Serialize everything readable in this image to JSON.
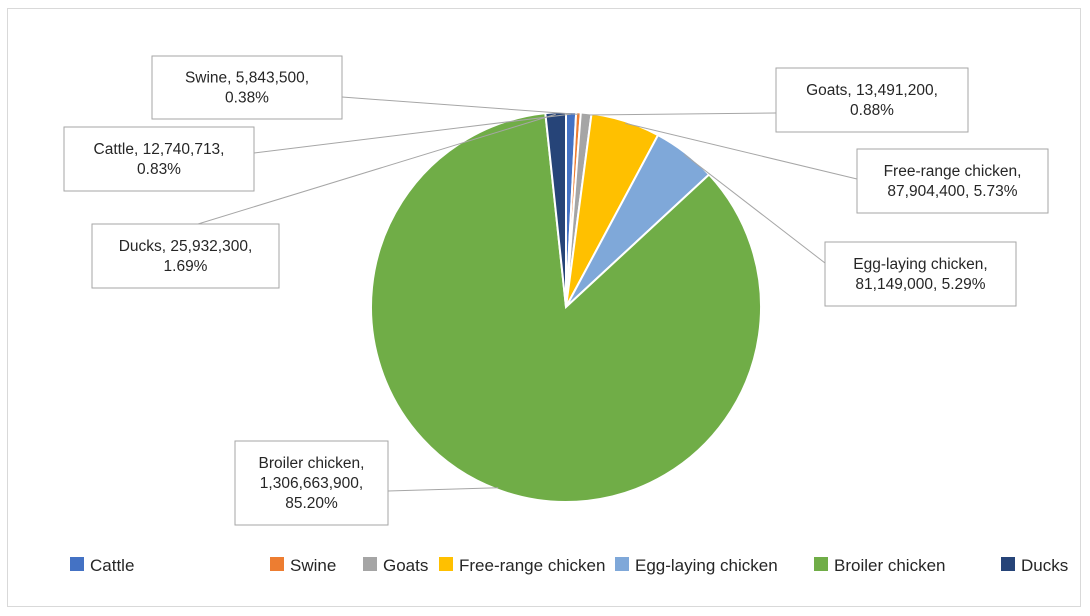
{
  "chart_data": {
    "type": "pie",
    "title": "",
    "categories": [
      "Cattle",
      "Swine",
      "Goats",
      "Free-range chicken",
      "Egg-laying chicken",
      "Broiler chicken",
      "Ducks"
    ],
    "values": [
      12740713,
      5843500,
      13491200,
      87904400,
      81149000,
      1306663900,
      25932300
    ],
    "percentages": [
      "0.83%",
      "0.38%",
      "0.88%",
      "5.73%",
      "5.29%",
      "85.20%",
      "1.69%"
    ],
    "colors": [
      "#4472c4",
      "#ed7d31",
      "#a5a5a5",
      "#ffc000",
      "#7fa8d9",
      "#70ad47",
      "#264478"
    ],
    "data_labels": [
      [
        "Cattle, 12,740,713,",
        "0.83%"
      ],
      [
        "Swine, 5,843,500,",
        "0.38%"
      ],
      [
        "Goats, 13,491,200,",
        "0.88%"
      ],
      [
        "Free-range chicken,",
        "87,904,400, 5.73%"
      ],
      [
        "Egg-laying chicken,",
        "81,149,000, 5.29%"
      ],
      [
        "Broiler chicken,",
        "1,306,663,900,",
        "85.20%"
      ],
      [
        "Ducks, 25,932,300,",
        "1.69%"
      ]
    ],
    "legend": {
      "position": "bottom",
      "entries": [
        "Cattle",
        "Swine",
        "Goats",
        "Free-range chicken",
        "Egg-laying chicken",
        "Broiler chicken",
        "Ducks"
      ]
    }
  }
}
